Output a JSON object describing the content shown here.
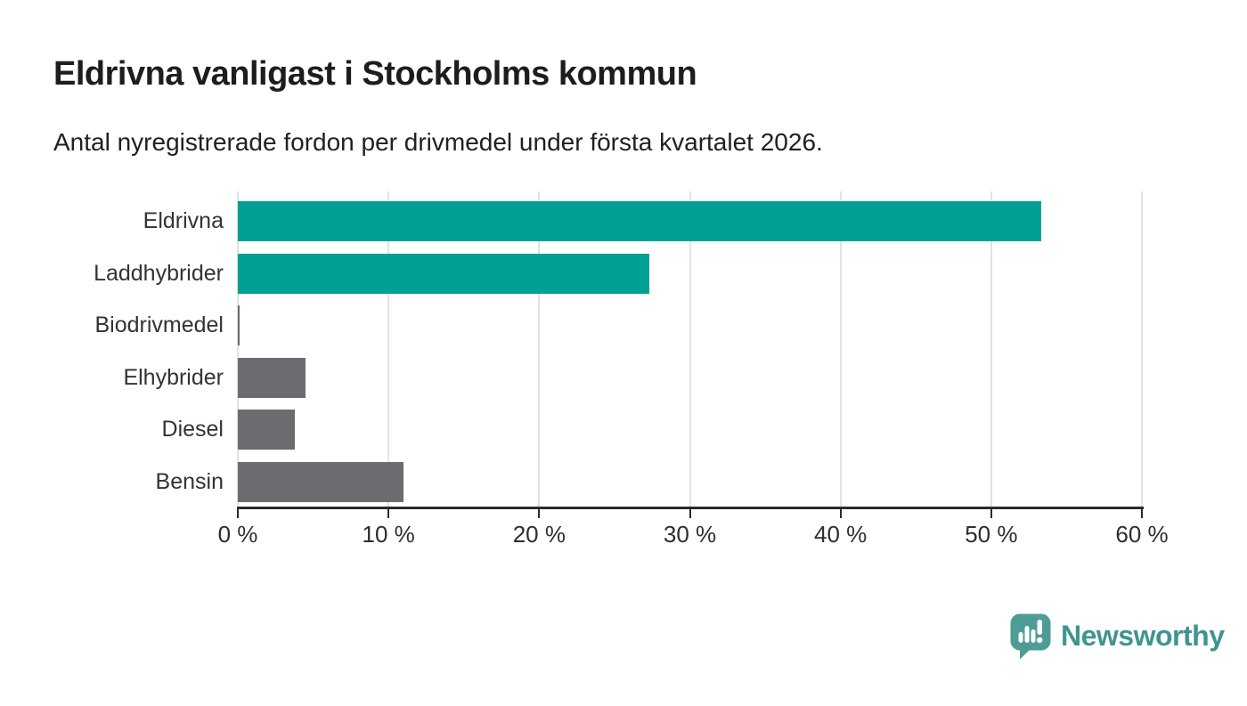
{
  "header": {
    "title": "Eldrivna vanligast i Stockholms kommun",
    "subtitle": "Antal nyregistrerade fordon per drivmedel under första kvartalet 2026."
  },
  "chart_data": {
    "type": "bar",
    "orientation": "horizontal",
    "title": "Eldrivna vanligast i Stockholms kommun",
    "subtitle": "Antal nyregistrerade fordon per drivmedel under första kvartalet 2026.",
    "categories": [
      "Eldrivna",
      "Laddhybrider",
      "Biodrivmedel",
      "Elhybrider",
      "Diesel",
      "Bensin"
    ],
    "values": [
      53.3,
      27.3,
      0.1,
      4.5,
      3.8,
      11.0
    ],
    "unit": "%",
    "bar_colors": [
      "#00a094",
      "#00a094",
      "#6b6b70",
      "#6b6b70",
      "#6b6b70",
      "#6b6b70"
    ],
    "xlim": [
      0,
      60
    ],
    "x_ticks": [
      0,
      10,
      20,
      30,
      40,
      50,
      60
    ],
    "x_tick_labels": [
      "0 %",
      "10 %",
      "20 %",
      "30 %",
      "40 %",
      "50 %",
      "60 %"
    ],
    "xlabel": "",
    "ylabel": "",
    "grid": "vertical-gridlines",
    "legend_position": "none"
  },
  "footer": {
    "brand": "Newsworthy",
    "brand_color": "#3f948e",
    "logo_icon": "bar-chart-speech-bubble-icon"
  },
  "colors": {
    "accent_teal": "#00a094",
    "neutral_gray": "#6b6b70",
    "gridline": "#e2e2e2",
    "axis": "#2b2b2b",
    "background": "#ffffff"
  }
}
